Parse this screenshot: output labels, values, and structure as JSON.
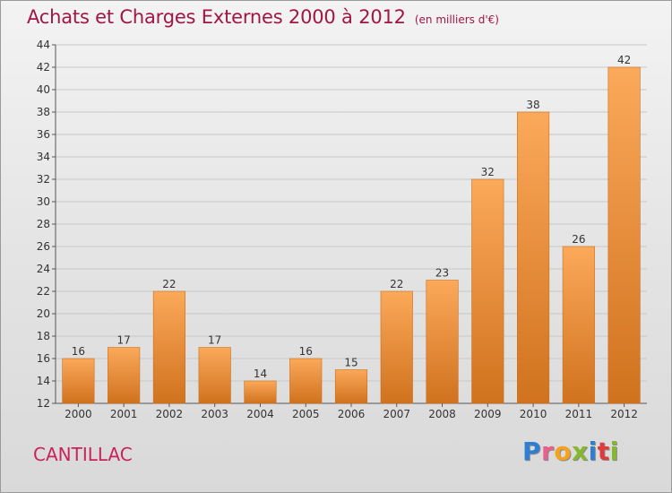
{
  "title": "Achats et Charges Externes 2000 à 2012",
  "subtitle": "(en milliers d'€)",
  "location": "CANTILLAC",
  "logo": {
    "p1": "P",
    "p2": "r",
    "p3": "o",
    "p4": "x",
    "p5": "i",
    "p6": "t",
    "p7": "i"
  },
  "colors": {
    "bar_light": "#fba95a",
    "bar_dark": "#d0721e",
    "title": "#a01645",
    "grid": "#c8c8c8"
  },
  "chart_data": {
    "type": "bar",
    "title": "Achats et Charges Externes 2000 à 2012",
    "subtitle": "(en milliers d'€)",
    "xlabel": "",
    "ylabel": "",
    "categories": [
      "2000",
      "2001",
      "2002",
      "2003",
      "2004",
      "2005",
      "2006",
      "2007",
      "2008",
      "2009",
      "2010",
      "2011",
      "2012"
    ],
    "values": [
      16,
      17,
      22,
      17,
      14,
      16,
      15,
      22,
      23,
      32,
      38,
      26,
      42
    ],
    "ylim": [
      12,
      44
    ],
    "yticks": [
      12,
      14,
      16,
      18,
      20,
      22,
      24,
      26,
      28,
      30,
      32,
      34,
      36,
      38,
      40,
      42,
      44
    ],
    "grid": true,
    "legend": "none"
  }
}
